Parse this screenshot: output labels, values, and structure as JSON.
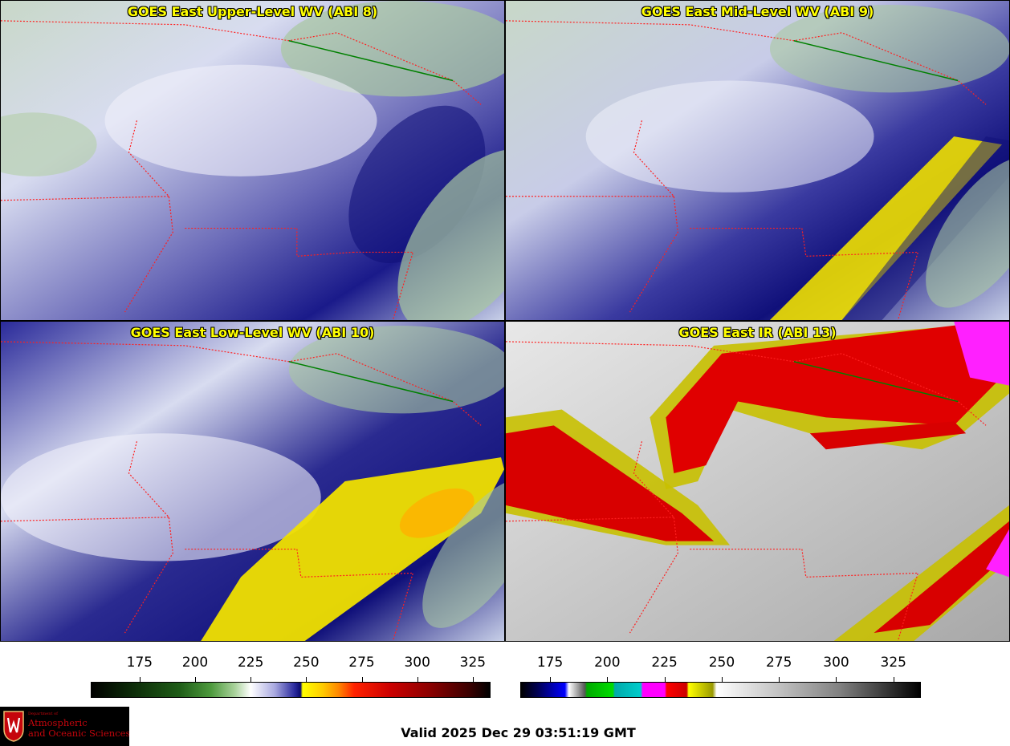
{
  "panels": [
    {
      "id": "tl",
      "title": "GOES East Upper-Level WV (ABI 8)"
    },
    {
      "id": "tr",
      "title": "GOES East Mid-Level WV (ABI 9)"
    },
    {
      "id": "bl",
      "title": "GOES East Low-Level WV (ABI 10)"
    },
    {
      "id": "br",
      "title": "GOES East IR (ABI 13)"
    }
  ],
  "colorbars": {
    "wv": {
      "ticks": [
        "175",
        "200",
        "225",
        "250",
        "275",
        "300",
        "325"
      ],
      "tick_values": [
        175,
        200,
        225,
        250,
        275,
        300,
        325
      ],
      "range": [
        153,
        333
      ]
    },
    "ir": {
      "ticks": [
        "175",
        "200",
        "225",
        "250",
        "275",
        "300",
        "325"
      ],
      "tick_values": [
        175,
        200,
        225,
        250,
        275,
        300,
        325
      ],
      "range": [
        162,
        337
      ]
    }
  },
  "logo": {
    "dept": "Department of",
    "line1": "Atmospheric",
    "line2": "and Oceanic Sciences"
  },
  "valid_time": "Valid 2025 Dec 29 03:51:19 GMT",
  "colors": {
    "title": "#ffff00",
    "state_borders": "#ff2020",
    "country_border": "#008000",
    "logo_red": "#c5050c"
  }
}
